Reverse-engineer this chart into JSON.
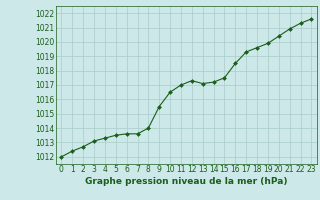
{
  "x": [
    0,
    1,
    2,
    3,
    4,
    5,
    6,
    7,
    8,
    9,
    10,
    11,
    12,
    13,
    14,
    15,
    16,
    17,
    18,
    19,
    20,
    21,
    22,
    23
  ],
  "y": [
    1012.0,
    1012.4,
    1012.7,
    1013.1,
    1013.3,
    1013.5,
    1013.6,
    1013.6,
    1014.0,
    1015.5,
    1016.5,
    1017.0,
    1017.3,
    1017.1,
    1017.2,
    1017.5,
    1018.5,
    1019.3,
    1019.6,
    1019.9,
    1020.4,
    1020.9,
    1021.3,
    1021.6
  ],
  "xlim": [
    -0.5,
    23.5
  ],
  "ylim": [
    1011.5,
    1022.5
  ],
  "yticks": [
    1012,
    1013,
    1014,
    1015,
    1016,
    1017,
    1018,
    1019,
    1020,
    1021,
    1022
  ],
  "xticks": [
    0,
    1,
    2,
    3,
    4,
    5,
    6,
    7,
    8,
    9,
    10,
    11,
    12,
    13,
    14,
    15,
    16,
    17,
    18,
    19,
    20,
    21,
    22,
    23
  ],
  "line_color": "#1a5e1a",
  "marker_color": "#1a5e1a",
  "bg_color": "#cce8e8",
  "grid_color": "#aacccc",
  "xlabel": "Graphe pression niveau de la mer (hPa)",
  "xlabel_color": "#1a5e1a",
  "tick_color": "#1a5e1a",
  "axis_label_fontsize": 6.5,
  "tick_fontsize": 5.5
}
